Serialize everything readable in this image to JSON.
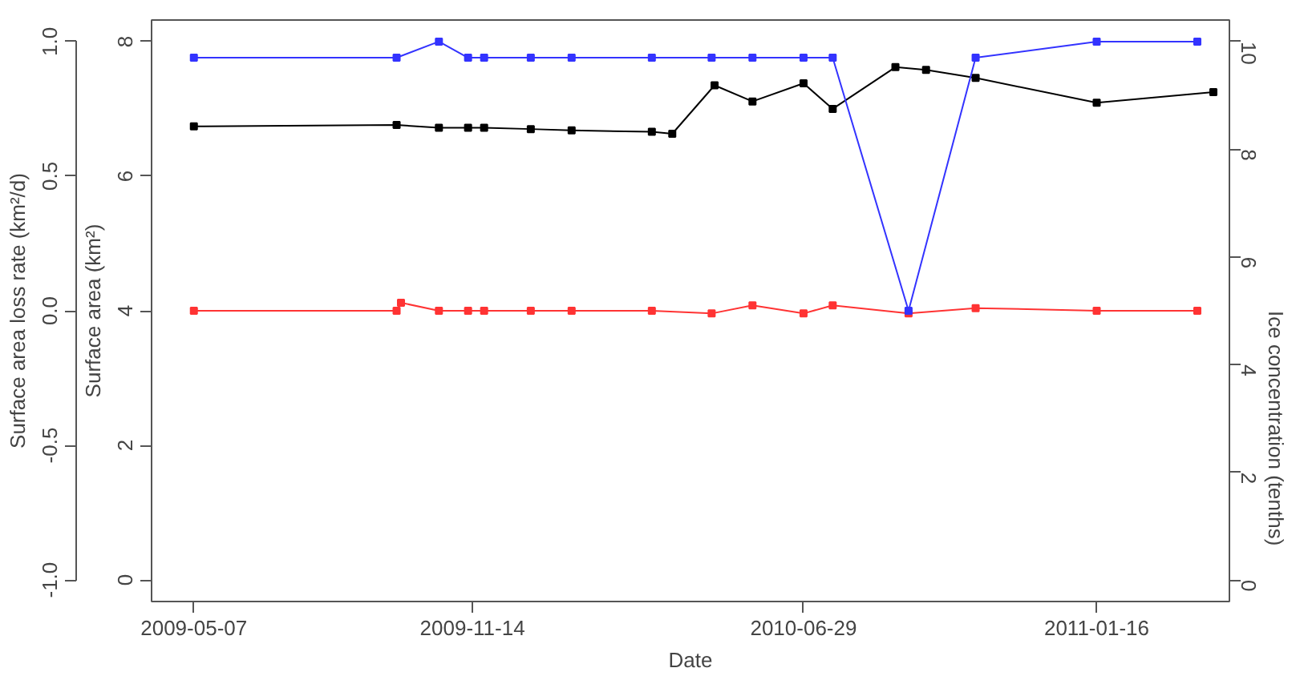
{
  "chart_data": {
    "type": "line",
    "xlabel": "Date",
    "ylabel": "Surface area (km²)",
    "y2label": "Ice concentration (tenths)",
    "y3label": "Surface area loss rate (km²/d)",
    "xlim": [
      "2009-04-08",
      "2011-04-17"
    ],
    "xticks": [
      "2009-05-07",
      "2009-11-14",
      "2010-06-29",
      "2011-01-16"
    ],
    "ylim": [
      -0.32,
      8.32
    ],
    "yticks": [
      0,
      2,
      4,
      6,
      8
    ],
    "y2lim": [
      -0.4,
      10.4
    ],
    "y2ticks": [
      0,
      2,
      4,
      6,
      8,
      10
    ],
    "y3lim": [
      -1.08,
      1.08
    ],
    "y3ticks": [
      {
        "value": -1,
        "label": "-1.0"
      },
      {
        "value": -0.5,
        "label": "-0.5"
      },
      {
        "value": 0,
        "label": "0.0"
      },
      {
        "value": 0.5,
        "label": "0.5"
      },
      {
        "value": 1,
        "label": "1.0"
      }
    ],
    "grid": false,
    "marker": "square",
    "series": [
      {
        "color": "#3333ff",
        "axis": "y2",
        "x": [
          "2009-05-07",
          "2009-09-23",
          "2009-10-22",
          "2009-11-11",
          "2009-11-22",
          "2009-12-24",
          "2010-01-21",
          "2010-03-17",
          "2010-04-27",
          "2010-05-25",
          "2010-06-29",
          "2010-07-19",
          "2010-09-09",
          "2010-10-25",
          "2011-01-16",
          "2011-03-26"
        ],
        "values": [
          9.7,
          9.7,
          10,
          9.7,
          9.7,
          9.7,
          9.7,
          9.7,
          9.7,
          9.7,
          9.7,
          9.7,
          5.0,
          9.7,
          10,
          10
        ]
      },
      {
        "color": "#ff3333",
        "axis": "y3",
        "x": [
          "2009-05-07",
          "2009-09-23",
          "2009-09-26",
          "2009-10-22",
          "2009-11-11",
          "2009-11-22",
          "2009-12-24",
          "2010-01-21",
          "2010-03-17",
          "2010-04-27",
          "2010-05-25",
          "2010-06-29",
          "2010-07-19",
          "2010-09-09",
          "2010-10-25",
          "2011-01-16",
          "2011-03-26"
        ],
        "values": [
          0,
          0,
          0.03,
          0,
          0,
          0,
          0,
          0,
          0,
          -0.01,
          0.02,
          -0.01,
          0.02,
          -0.01,
          0.01,
          0,
          0
        ]
      },
      {
        "color": "#000000",
        "x": [
          "2009-05-07",
          "2009-09-23",
          "2009-10-22",
          "2009-11-11",
          "2009-11-22",
          "2009-12-24",
          "2010-01-21",
          "2010-03-17",
          "2010-03-31",
          "2010-04-29",
          "2010-05-25",
          "2010-06-29",
          "2010-07-19",
          "2010-08-31",
          "2010-09-21",
          "2010-10-25",
          "2011-01-16",
          "2011-04-06"
        ],
        "values": [
          6.74,
          6.76,
          6.72,
          6.72,
          6.72,
          6.7,
          6.68,
          6.66,
          6.63,
          7.35,
          7.11,
          7.38,
          7.0,
          7.62,
          7.58,
          7.46,
          7.09,
          7.25
        ]
      }
    ]
  }
}
